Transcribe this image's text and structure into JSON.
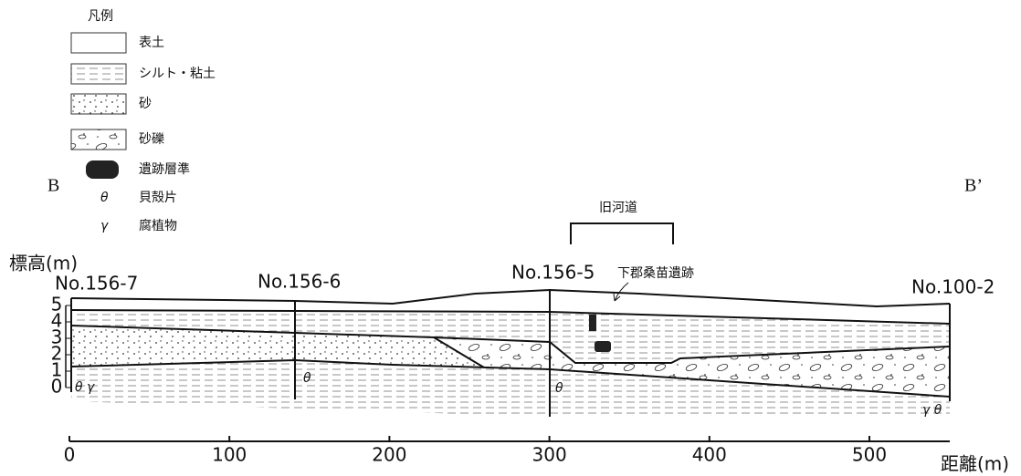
{
  "legend": {
    "title": "凡例",
    "items": [
      {
        "label": "表土"
      },
      {
        "label": "シルト・粘土"
      },
      {
        "label": "砂"
      },
      {
        "label": "砂礫"
      },
      {
        "label": "遺跡層準"
      },
      {
        "symbol": "θ",
        "label": "貝殻片"
      },
      {
        "symbol": "γ",
        "label": "腐植物"
      }
    ]
  },
  "section": {
    "left_end": "B",
    "right_end": "B’",
    "boreholes": [
      "No.156-7",
      "No.156-6",
      "No.156-5",
      "No.100-2"
    ],
    "channel_label": "旧河道",
    "site_label": "下郡桑苗遺跡",
    "symbols": [
      "θ γ",
      "θ",
      "θ",
      "γ θ"
    ]
  },
  "y_axis": {
    "label": "標高(m)",
    "ticks": [
      0,
      1,
      2,
      3,
      4,
      5
    ]
  },
  "x_axis": {
    "label": "距離(m)",
    "ticks": [
      0,
      100,
      200,
      300,
      400,
      500
    ]
  }
}
